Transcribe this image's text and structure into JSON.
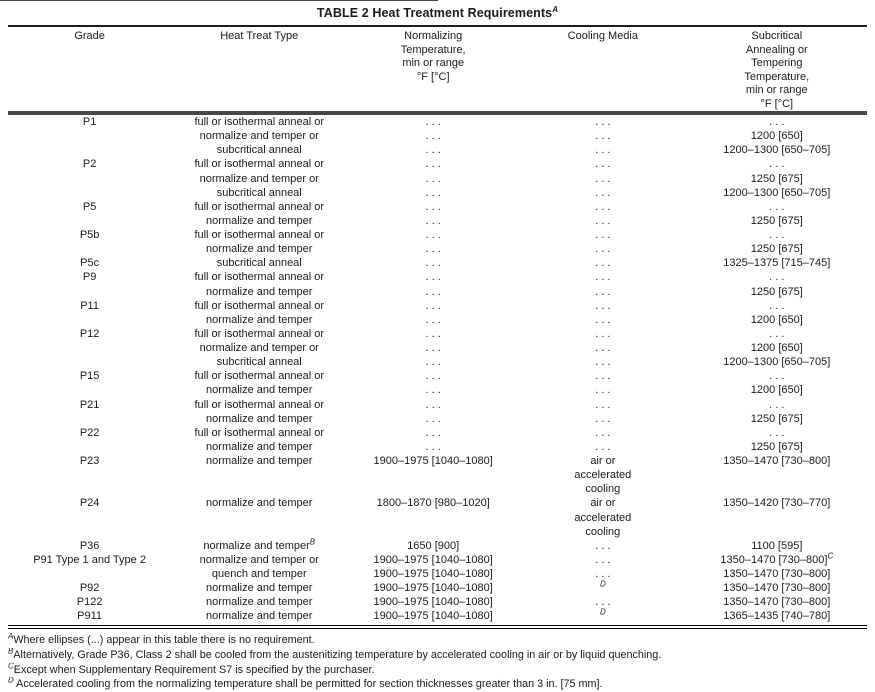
{
  "document": {
    "title": "TABLE 2 Heat Treatment Requirements",
    "title_superscript": "A",
    "colors": {
      "text": "#1a1a1a",
      "rule": "#000000",
      "header_rule": "#474747"
    },
    "table": {
      "columns": [
        "Grade",
        "Heat Treat Type",
        "Normalizing\nTemperature,\nmin or range\n°F [°C]",
        "Cooling Media",
        "Subcritical\nAnnealing or\nTempering\nTemperature,\nmin or range\n°F [°C]"
      ],
      "ellipsis": ". . .",
      "rows": [
        {
          "grade": "P1",
          "type": "full or isothermal anneal or",
          "norm": ". . .",
          "cool": ". . .",
          "sub": ". . ."
        },
        {
          "grade": "",
          "type": "normalize and temper or",
          "norm": ". . .",
          "cool": ". . .",
          "sub": "1200 [650]"
        },
        {
          "grade": "",
          "type": "subcritical anneal",
          "norm": ". . .",
          "cool": ". . .",
          "sub": "1200–1300 [650–705]"
        },
        {
          "grade": "P2",
          "type": "full or isothermal anneal or",
          "norm": ". . .",
          "cool": ". . .",
          "sub": ". . ."
        },
        {
          "grade": "",
          "type": "normalize and temper or",
          "norm": ". . .",
          "cool": ". . .",
          "sub": "1250 [675]"
        },
        {
          "grade": "",
          "type": "subcritical anneal",
          "norm": ". . .",
          "cool": ". . .",
          "sub": "1200–1300 [650–705]"
        },
        {
          "grade": "P5",
          "type": "full or isothermal anneal or",
          "norm": ". . .",
          "cool": ". . .",
          "sub": ". . ."
        },
        {
          "grade": "",
          "type": "normalize and temper",
          "norm": ". . .",
          "cool": ". . .",
          "sub": "1250 [675]"
        },
        {
          "grade": "P5b",
          "type": "full or isothermal anneal or",
          "norm": ". . .",
          "cool": ". . .",
          "sub": ". . ."
        },
        {
          "grade": "",
          "type": "normalize and temper",
          "norm": ". . .",
          "cool": ". . .",
          "sub": "1250 [675]"
        },
        {
          "grade": "P5c",
          "type": "subcritical anneal",
          "norm": ". . .",
          "cool": ". . .",
          "sub": "1325–1375 [715–745]"
        },
        {
          "grade": "P9",
          "type": "full or isothermal anneal or",
          "norm": ". . .",
          "cool": ". . .",
          "sub": ". . ."
        },
        {
          "grade": "",
          "type": "normalize and temper",
          "norm": ". . .",
          "cool": ". . .",
          "sub": "1250 [675]"
        },
        {
          "grade": "P11",
          "type": "full or isothermal anneal or",
          "norm": ". . .",
          "cool": ". . .",
          "sub": ". . ."
        },
        {
          "grade": "",
          "type": "normalize and temper",
          "norm": ". . .",
          "cool": ". . .",
          "sub": "1200 [650]"
        },
        {
          "grade": "P12",
          "type": "full or isothermal anneal or",
          "norm": ". . .",
          "cool": ". . .",
          "sub": ". . ."
        },
        {
          "grade": "",
          "type": "normalize and temper or",
          "norm": ". . .",
          "cool": ". . .",
          "sub": "1200 [650]"
        },
        {
          "grade": "",
          "type": "subcritical anneal",
          "norm": ". . .",
          "cool": ". . .",
          "sub": "1200–1300 [650–705]"
        },
        {
          "grade": "P15",
          "type": "full or isothermal anneal or",
          "norm": ". . .",
          "cool": ". . .",
          "sub": ". . ."
        },
        {
          "grade": "",
          "type": "normalize and temper",
          "norm": ". . .",
          "cool": ". . .",
          "sub": "1200 [650]"
        },
        {
          "grade": "P21",
          "type": "full or isothermal anneal or",
          "norm": ". . .",
          "cool": ". . .",
          "sub": ". . ."
        },
        {
          "grade": "",
          "type": "normalize and temper",
          "norm": ". . .",
          "cool": ". . .",
          "sub": "1250 [675]"
        },
        {
          "grade": "P22",
          "type": "full or isothermal anneal or",
          "norm": ". . .",
          "cool": ". . .",
          "sub": ". . ."
        },
        {
          "grade": "",
          "type": "normalize and temper",
          "norm": ". . .",
          "cool": ". . .",
          "sub": "1250 [675]"
        },
        {
          "grade": "P23",
          "type": "normalize and temper",
          "norm": "1900–1975 [1040–1080]",
          "cool": "air or\naccelerated\ncooling",
          "sub": "1350–1470 [730–800]"
        },
        {
          "grade": "P24",
          "type": "normalize and temper",
          "norm": "1800–1870 [980–1020]",
          "cool": "air or\naccelerated\ncooling",
          "sub": "1350–1420 [730–770]"
        },
        {
          "grade": "P36",
          "type": "normalize and temper",
          "type_sup": "B",
          "norm": "1650 [900]",
          "cool": ". . .",
          "sub": "1100 [595]"
        },
        {
          "grade": "P91 Type 1 and Type 2",
          "type": "normalize and temper or",
          "norm": "1900–1975 [1040–1080]",
          "cool": ". . .",
          "sub": "1350–1470 [730–800]",
          "sub_sup": "C"
        },
        {
          "grade": "",
          "type": "quench and temper",
          "norm": "1900–1975 [1040–1080]",
          "cool": ". . .",
          "sub": "1350–1470 [730–800]"
        },
        {
          "grade": "P92",
          "type": "normalize and temper",
          "norm": "1900–1975 [1040–1080]",
          "cool": "",
          "cool_sup": "D",
          "sub": "1350–1470 [730–800]"
        },
        {
          "grade": "P122",
          "type": "normalize and temper",
          "norm": "1900–1975 [1040–1080]",
          "cool": ". . .",
          "sub": "1350–1470 [730–800]"
        },
        {
          "grade": "P911",
          "type": "normalize and temper",
          "norm": "1900–1975 [1040–1080]",
          "cool": "",
          "cool_sup": "D",
          "sub": "1365–1435 [740–780]"
        }
      ]
    },
    "footnotes": [
      {
        "sup": "A",
        "text": "Where ellipses (...) appear in this table there is no requirement."
      },
      {
        "sup": "B",
        "text": "Alternatively, Grade P36, Class 2 shall be cooled from the austenitizing temperature by accelerated cooling in air or by liquid quenching."
      },
      {
        "sup": "C",
        "text": "Except when Supplementary Requirement S7 is specified by the purchaser."
      },
      {
        "sup": "D",
        "text": " Accelerated cooling from the normalizing temperature shall be permitted for section thicknesses greater than 3 in. [75 mm]."
      }
    ]
  }
}
